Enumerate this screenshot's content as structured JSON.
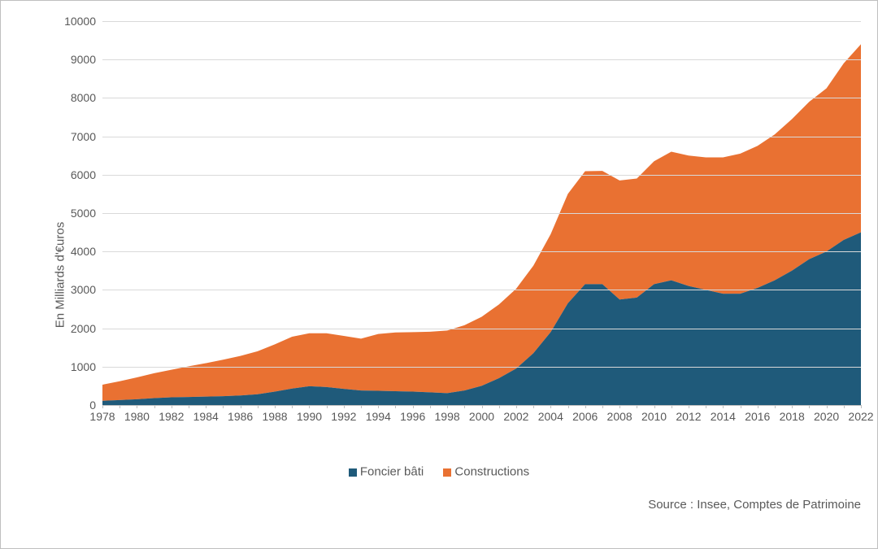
{
  "chart": {
    "type": "stacked-area",
    "y_axis_title": "En Milliards d'€uros",
    "ylim": [
      0,
      10000
    ],
    "ytick_step": 1000,
    "yticks": [
      0,
      1000,
      2000,
      3000,
      4000,
      5000,
      6000,
      7000,
      8000,
      9000,
      10000
    ],
    "years": [
      1978,
      1979,
      1980,
      1981,
      1982,
      1983,
      1984,
      1985,
      1986,
      1987,
      1988,
      1989,
      1990,
      1991,
      1992,
      1993,
      1994,
      1995,
      1996,
      1997,
      1998,
      1999,
      2000,
      2001,
      2002,
      2003,
      2004,
      2005,
      2006,
      2007,
      2008,
      2009,
      2010,
      2011,
      2012,
      2013,
      2014,
      2015,
      2016,
      2017,
      2018,
      2019,
      2020,
      2021,
      2022
    ],
    "x_tick_labels": [
      "1978",
      "1980",
      "1982",
      "1984",
      "1986",
      "1988",
      "1990",
      "1992",
      "1994",
      "1996",
      "1998",
      "2000",
      "2002",
      "2004",
      "2006",
      "2008",
      "2010",
      "2012",
      "2014",
      "2016",
      "2018",
      "2020",
      "2022"
    ],
    "x_tick_years": [
      1978,
      1980,
      1982,
      1984,
      1986,
      1988,
      1990,
      1992,
      1994,
      1996,
      1998,
      2000,
      2002,
      2004,
      2006,
      2008,
      2010,
      2012,
      2014,
      2016,
      2018,
      2020,
      2022
    ],
    "series": [
      {
        "name": "Foncier bâti",
        "color": "#1f5a7a",
        "values": [
          110,
          130,
          150,
          180,
          200,
          210,
          220,
          230,
          250,
          280,
          350,
          430,
          490,
          470,
          420,
          380,
          370,
          360,
          350,
          330,
          310,
          380,
          500,
          700,
          950,
          1350,
          1900,
          2650,
          3150,
          3150,
          2750,
          2800,
          3150,
          3250,
          3100,
          3000,
          2900,
          2900,
          3050,
          3250,
          3500,
          3800,
          4000,
          4300,
          4500
        ]
      },
      {
        "name": "Constructions",
        "color": "#e97132",
        "values": [
          420,
          490,
          570,
          650,
          720,
          800,
          870,
          950,
          1030,
          1120,
          1230,
          1350,
          1380,
          1400,
          1380,
          1350,
          1480,
          1530,
          1550,
          1580,
          1630,
          1700,
          1800,
          1920,
          2080,
          2280,
          2550,
          2850,
          2940,
          2950,
          3100,
          3100,
          3200,
          3350,
          3400,
          3450,
          3550,
          3650,
          3700,
          3800,
          3950,
          4100,
          4250,
          4600,
          4900
        ]
      }
    ],
    "legend_labels": [
      "Foncier bâti",
      "Constructions"
    ],
    "source_text": "Source : Insee, Comptes de Patrimoine",
    "background_color": "#ffffff",
    "grid_color": "#d9d9d9",
    "axis_color": "#bfbfbf",
    "tick_font_size": 14,
    "title_font_size": 15
  }
}
